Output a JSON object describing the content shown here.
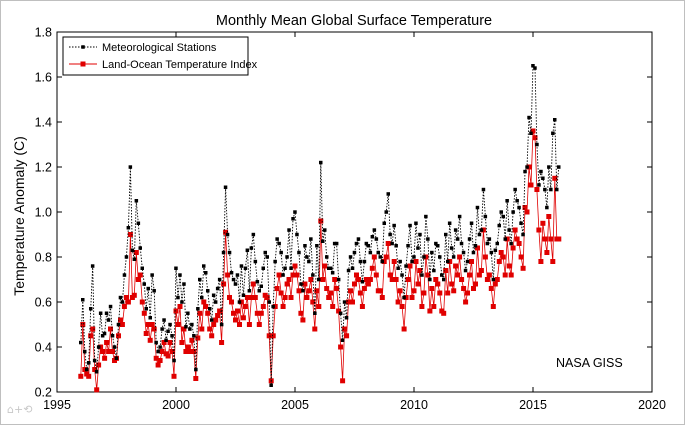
{
  "chart_data": {
    "type": "line",
    "title": "Monthly Mean Global Surface Temperature",
    "xlabel": "",
    "ylabel": "Temperature Anomaly (C)",
    "xlim": [
      1995,
      2020
    ],
    "ylim": [
      0.2,
      1.8
    ],
    "x_ticks": [
      "1995",
      "2000",
      "2005",
      "2010",
      "2015",
      "2020"
    ],
    "y_ticks": [
      "0.2",
      "0.4",
      "0.6",
      "0.8",
      "1.0",
      "1.2",
      "1.4",
      "1.6",
      "1.8"
    ],
    "legend_position": "top-left",
    "grid": false,
    "annotation": "NASA GISS",
    "series": [
      {
        "name": "Meteorological Stations",
        "color": "#000000",
        "line_style": "dotted",
        "marker": "square-small",
        "x_start": 1996.0,
        "x_step": 0.08333,
        "values": [
          0.42,
          0.61,
          0.38,
          0.3,
          0.33,
          0.57,
          0.76,
          0.34,
          0.29,
          0.4,
          0.55,
          0.45,
          0.46,
          0.55,
          0.52,
          0.58,
          0.45,
          0.4,
          0.35,
          0.5,
          0.62,
          0.6,
          0.72,
          0.8,
          0.93,
          1.2,
          0.83,
          0.79,
          1.05,
          0.95,
          0.84,
          0.75,
          0.68,
          0.57,
          0.66,
          0.53,
          0.72,
          0.65,
          0.42,
          0.38,
          0.4,
          0.48,
          0.52,
          0.43,
          0.47,
          0.5,
          0.45,
          0.34,
          0.75,
          0.62,
          0.72,
          0.6,
          0.68,
          0.49,
          0.55,
          0.48,
          0.5,
          0.45,
          0.3,
          0.57,
          0.7,
          0.62,
          0.76,
          0.73,
          0.65,
          0.57,
          0.52,
          0.63,
          0.6,
          0.66,
          0.7,
          0.5,
          0.82,
          1.11,
          0.9,
          0.82,
          0.73,
          0.7,
          0.68,
          0.72,
          0.6,
          0.76,
          0.63,
          0.75,
          0.83,
          0.65,
          0.84,
          0.9,
          0.78,
          0.69,
          0.65,
          0.67,
          0.75,
          0.82,
          0.8,
          0.6,
          0.23,
          0.58,
          0.78,
          0.88,
          0.86,
          0.82,
          0.72,
          0.75,
          0.8,
          0.92,
          0.75,
          0.97,
          1.0,
          0.9,
          0.82,
          0.68,
          0.65,
          0.85,
          0.8,
          0.78,
          0.88,
          0.72,
          0.55,
          0.85,
          0.7,
          1.22,
          0.87,
          0.92,
          0.8,
          0.75,
          0.75,
          0.73,
          0.86,
          0.86,
          0.7,
          0.55,
          0.43,
          0.6,
          0.53,
          0.74,
          0.8,
          0.75,
          0.82,
          0.86,
          0.88,
          0.78,
          0.69,
          0.78,
          0.86,
          0.85,
          0.82,
          0.89,
          0.92,
          0.88,
          0.82,
          0.8,
          0.78,
          0.95,
          1.0,
          1.08,
          0.9,
          0.86,
          0.94,
          0.85,
          0.75,
          0.78,
          0.72,
          0.62,
          0.76,
          0.85,
          0.94,
          0.78,
          0.8,
          0.95,
          0.84,
          0.9,
          0.72,
          0.8,
          0.98,
          0.88,
          0.7,
          0.82,
          0.74,
          0.86,
          0.85,
          0.8,
          0.72,
          0.7,
          0.9,
          0.78,
          0.95,
          0.84,
          0.8,
          0.92,
          0.88,
          0.98,
          0.86,
          0.82,
          0.74,
          0.78,
          0.88,
          0.95,
          0.82,
          0.85,
          1.02,
          0.9,
          0.92,
          1.1,
          0.98,
          0.86,
          0.88,
          0.82,
          0.7,
          0.83,
          0.86,
          0.94,
          1.0,
          0.98,
          0.88,
          1.05,
          0.92,
          0.86,
          1.0,
          1.1,
          1.05,
          1.02,
          0.95,
          0.9,
          1.18,
          1.2,
          1.42,
          1.35,
          1.65,
          1.64,
          1.3,
          1.12,
          1.18,
          1.15,
          1.1,
          1.02,
          1.2,
          1.1,
          1.35,
          1.41,
          1.1,
          1.2
        ]
      },
      {
        "name": "Land-Ocean Temperature Index",
        "color": "#e00000",
        "line_style": "solid",
        "marker": "square",
        "x_start": 1996.0,
        "x_step": 0.08333,
        "values": [
          0.27,
          0.5,
          0.3,
          0.28,
          0.27,
          0.45,
          0.48,
          0.3,
          0.21,
          0.32,
          0.4,
          0.38,
          0.35,
          0.42,
          0.38,
          0.48,
          0.38,
          0.34,
          0.35,
          0.45,
          0.52,
          0.5,
          0.58,
          0.62,
          0.6,
          0.9,
          0.62,
          0.63,
          0.82,
          0.7,
          0.72,
          0.6,
          0.55,
          0.46,
          0.5,
          0.43,
          0.5,
          0.48,
          0.35,
          0.32,
          0.34,
          0.38,
          0.42,
          0.37,
          0.36,
          0.42,
          0.38,
          0.27,
          0.56,
          0.5,
          0.58,
          0.42,
          0.48,
          0.38,
          0.4,
          0.38,
          0.43,
          0.38,
          0.26,
          0.44,
          0.55,
          0.48,
          0.6,
          0.58,
          0.55,
          0.48,
          0.45,
          0.5,
          0.52,
          0.54,
          0.56,
          0.42,
          0.68,
          0.91,
          0.72,
          0.62,
          0.6,
          0.55,
          0.52,
          0.56,
          0.5,
          0.6,
          0.53,
          0.58,
          0.62,
          0.5,
          0.62,
          0.68,
          0.62,
          0.55,
          0.5,
          0.55,
          0.58,
          0.63,
          0.62,
          0.45,
          0.25,
          0.45,
          0.58,
          0.66,
          0.72,
          0.64,
          0.58,
          0.62,
          0.68,
          0.7,
          0.62,
          0.72,
          0.76,
          0.72,
          0.65,
          0.55,
          0.52,
          0.68,
          0.62,
          0.65,
          0.7,
          0.6,
          0.48,
          0.65,
          0.58,
          0.96,
          0.7,
          0.76,
          0.66,
          0.62,
          0.64,
          0.58,
          0.7,
          0.66,
          0.56,
          0.4,
          0.25,
          0.48,
          0.45,
          0.6,
          0.65,
          0.6,
          0.68,
          0.72,
          0.7,
          0.64,
          0.58,
          0.66,
          0.7,
          0.68,
          0.7,
          0.75,
          0.8,
          0.72,
          0.65,
          0.65,
          0.62,
          0.78,
          0.8,
          0.86,
          0.72,
          0.7,
          0.78,
          0.7,
          0.6,
          0.65,
          0.58,
          0.48,
          0.62,
          0.7,
          0.76,
          0.62,
          0.65,
          0.78,
          0.68,
          0.74,
          0.58,
          0.64,
          0.8,
          0.72,
          0.56,
          0.66,
          0.58,
          0.7,
          0.68,
          0.64,
          0.56,
          0.55,
          0.74,
          0.64,
          0.78,
          0.68,
          0.65,
          0.76,
          0.72,
          0.8,
          0.7,
          0.66,
          0.6,
          0.64,
          0.72,
          0.78,
          0.66,
          0.68,
          0.84,
          0.72,
          0.74,
          0.92,
          0.8,
          0.7,
          0.72,
          0.66,
          0.58,
          0.68,
          0.7,
          0.78,
          0.82,
          0.8,
          0.72,
          0.88,
          0.76,
          0.72,
          0.84,
          0.92,
          0.88,
          0.86,
          0.8,
          0.75,
          1.02,
          1.0,
          1.2,
          1.12,
          1.36,
          1.33,
          1.1,
          0.92,
          0.78,
          0.95,
          0.88,
          0.82,
          0.98,
          0.88,
          0.78,
          1.15,
          0.88,
          0.88
        ]
      }
    ]
  }
}
